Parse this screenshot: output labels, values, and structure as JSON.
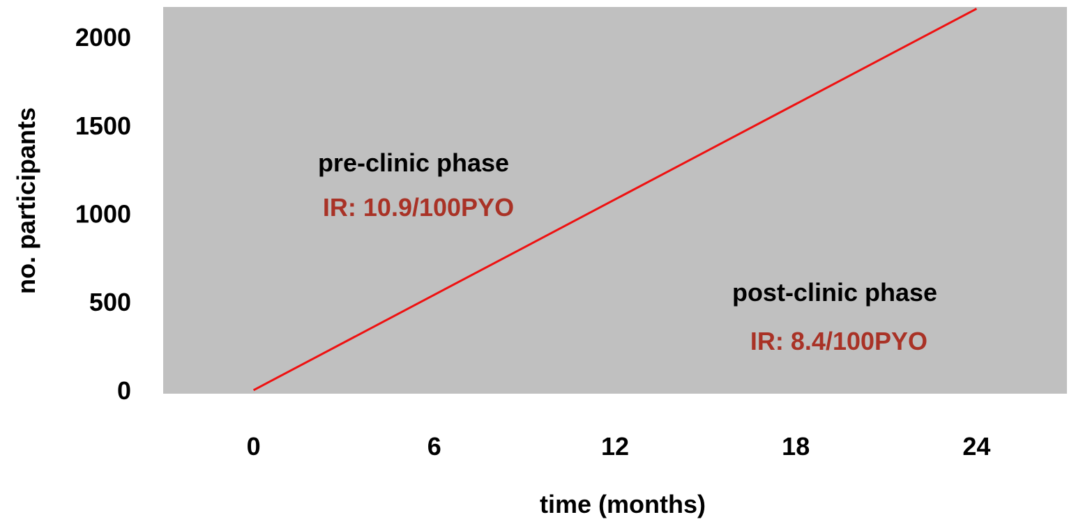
{
  "chart_data": {
    "type": "line",
    "title": "",
    "xlabel": "time (months)",
    "ylabel": "no. participants",
    "x_ticks": [
      0,
      6,
      12,
      18,
      24
    ],
    "y_ticks": [
      0,
      500,
      1000,
      1500,
      2000
    ],
    "xlim": [
      -3,
      27
    ],
    "ylim": [
      -20,
      2170
    ],
    "grid": false,
    "plot_background": "#c0c0c0",
    "series": [
      {
        "color": "#ee1111",
        "x": [
          0,
          24
        ],
        "y": [
          0,
          2160
        ]
      }
    ],
    "annotations": [
      {
        "id": "pre",
        "heading": "pre-clinic phase",
        "rate": "IR: 10.9/100PYO",
        "rate_color": "#a93226"
      },
      {
        "id": "post",
        "heading": "post-clinic phase",
        "rate": "IR: 8.4/100PYO",
        "rate_color": "#a93226"
      }
    ]
  }
}
